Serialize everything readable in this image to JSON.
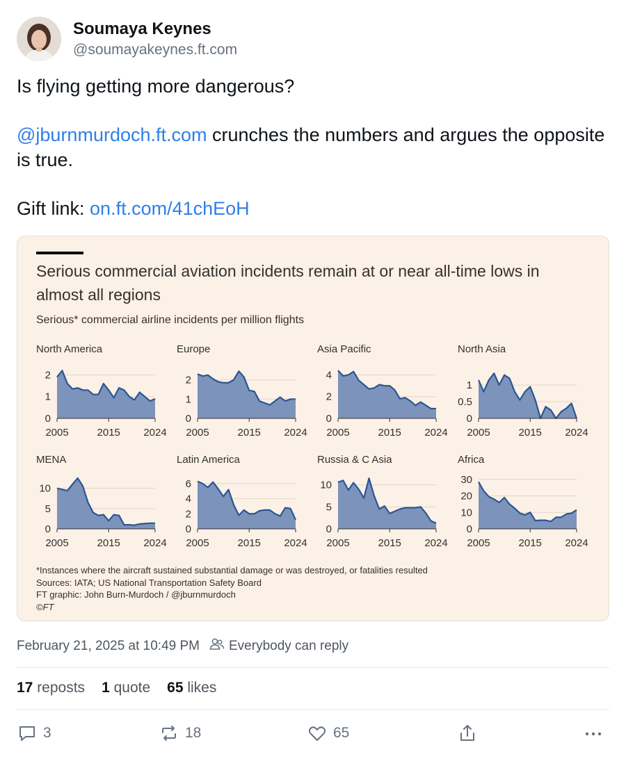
{
  "post": {
    "author_name": "Soumaya Keynes",
    "author_handle": "@soumayakeynes.ft.com",
    "text_line1": "Is flying getting more dangerous?",
    "mention": "@jburnmurdoch.ft.com",
    "text_line2_rest": " crunches the numbers and argues the opposite is true.",
    "gift_label": "Gift link: ",
    "gift_link": "on.ft.com/41chEoH",
    "timestamp": "February 21, 2025 at 10:49 PM",
    "reply_setting": "Everybody can reply",
    "reposts_count": "17",
    "reposts_label": " reposts",
    "quotes_count": "1",
    "quotes_label": " quote",
    "likes_count": "65",
    "likes_label": " likes",
    "reply_count": "3",
    "repost_count_action": "18",
    "like_count_action": "65"
  },
  "card": {
    "title": "Serious commercial aviation incidents remain at or near all-time lows in almost all regions",
    "subtitle": "Serious* commercial airline incidents per million flights",
    "footnote": "*Instances where the aircraft sustained substantial damage or was destroyed, or fatalities resulted",
    "sources": "Sources: IATA; US National Transportation Safety Board",
    "graphic_credit": "FT graphic: John Burn-Murdoch / @jburnmurdoch",
    "copyright": "©FT"
  },
  "colors": {
    "area_fill": "#7c93bb",
    "area_line": "#2a5594",
    "card_bg": "#fcf1e6",
    "link": "#2f7fe6"
  },
  "icons": [
    "reply-icon",
    "repost-icon",
    "like-icon",
    "share-icon",
    "more-icon",
    "people-icon"
  ],
  "chart_data": [
    {
      "type": "area",
      "title": "North America",
      "x_ticks": [
        "2005",
        "2015",
        "2024"
      ],
      "xlim": [
        2005,
        2024
      ],
      "ylim": [
        0,
        2.3
      ],
      "y_ticks": [
        0,
        1,
        2
      ],
      "x": [
        2005,
        2006,
        2007,
        2008,
        2009,
        2010,
        2011,
        2012,
        2013,
        2014,
        2015,
        2016,
        2017,
        2018,
        2019,
        2020,
        2021,
        2022,
        2023,
        2024
      ],
      "values": [
        1.9,
        2.2,
        1.6,
        1.35,
        1.4,
        1.3,
        1.3,
        1.1,
        1.1,
        1.6,
        1.3,
        0.95,
        1.4,
        1.3,
        1.0,
        0.85,
        1.2,
        1.0,
        0.8,
        0.9
      ]
    },
    {
      "type": "area",
      "title": "Europe",
      "x_ticks": [
        "2005",
        "2015",
        "2024"
      ],
      "xlim": [
        2005,
        2024
      ],
      "ylim": [
        0,
        2.6
      ],
      "y_ticks": [
        0,
        1,
        2
      ],
      "x": [
        2005,
        2006,
        2007,
        2008,
        2009,
        2010,
        2011,
        2012,
        2013,
        2014,
        2015,
        2016,
        2017,
        2018,
        2019,
        2020,
        2021,
        2022,
        2023,
        2024
      ],
      "values": [
        2.3,
        2.2,
        2.25,
        2.05,
        1.9,
        1.85,
        1.85,
        2.0,
        2.45,
        2.15,
        1.45,
        1.4,
        0.9,
        0.8,
        0.7,
        0.9,
        1.1,
        0.9,
        1.0,
        1.0
      ]
    },
    {
      "type": "area",
      "title": "Asia Pacific",
      "x_ticks": [
        "2005",
        "2015",
        "2024"
      ],
      "xlim": [
        2005,
        2024
      ],
      "ylim": [
        0,
        4.6
      ],
      "y_ticks": [
        0,
        2,
        4
      ],
      "x": [
        2005,
        2006,
        2007,
        2008,
        2009,
        2010,
        2011,
        2012,
        2013,
        2014,
        2015,
        2016,
        2017,
        2018,
        2019,
        2020,
        2021,
        2022,
        2023,
        2024
      ],
      "values": [
        4.4,
        3.9,
        4.0,
        4.3,
        3.5,
        3.1,
        2.7,
        2.8,
        3.1,
        3.0,
        3.0,
        2.6,
        1.8,
        1.9,
        1.6,
        1.2,
        1.5,
        1.2,
        0.9,
        0.9
      ]
    },
    {
      "type": "area",
      "title": "North Asia",
      "x_ticks": [
        "2005",
        "2015",
        "2024"
      ],
      "xlim": [
        2005,
        2024
      ],
      "ylim": [
        0,
        1.5
      ],
      "y_ticks": [
        0,
        0.5,
        1
      ],
      "x": [
        2005,
        2006,
        2007,
        2008,
        2009,
        2010,
        2011,
        2012,
        2013,
        2014,
        2015,
        2016,
        2017,
        2018,
        2019,
        2020,
        2021,
        2022,
        2023,
        2024
      ],
      "values": [
        1.15,
        0.8,
        1.15,
        1.35,
        1.0,
        1.3,
        1.2,
        0.8,
        0.55,
        0.8,
        0.95,
        0.55,
        0.0,
        0.35,
        0.25,
        0.0,
        0.2,
        0.3,
        0.45,
        0.0
      ]
    },
    {
      "type": "area",
      "title": "MENA",
      "x_ticks": [
        "2005",
        "2015",
        "2024"
      ],
      "xlim": [
        2005,
        2024
      ],
      "ylim": [
        0,
        13
      ],
      "y_ticks": [
        0,
        5,
        10
      ],
      "x": [
        2005,
        2006,
        2007,
        2008,
        2009,
        2010,
        2011,
        2012,
        2013,
        2014,
        2015,
        2016,
        2017,
        2018,
        2019,
        2020,
        2021,
        2022,
        2023,
        2024
      ],
      "values": [
        10.0,
        9.7,
        9.4,
        11.0,
        12.5,
        10.5,
        6.5,
        4.0,
        3.3,
        3.5,
        2.0,
        3.5,
        3.3,
        1.0,
        1.0,
        0.9,
        1.2,
        1.3,
        1.4,
        1.4
      ]
    },
    {
      "type": "area",
      "title": "Latin America",
      "x_ticks": [
        "2005",
        "2015",
        "2024"
      ],
      "xlim": [
        2005,
        2024
      ],
      "ylim": [
        0,
        7
      ],
      "y_ticks": [
        0,
        2,
        4,
        6
      ],
      "x": [
        2005,
        2006,
        2007,
        2008,
        2009,
        2010,
        2011,
        2012,
        2013,
        2014,
        2015,
        2016,
        2017,
        2018,
        2019,
        2020,
        2021,
        2022,
        2023,
        2024
      ],
      "values": [
        6.3,
        6.0,
        5.5,
        6.2,
        5.3,
        4.3,
        5.2,
        3.2,
        1.8,
        2.5,
        2.0,
        2.0,
        2.4,
        2.5,
        2.5,
        2.0,
        1.7,
        2.8,
        2.7,
        1.2
      ]
    },
    {
      "type": "area",
      "title": "Russia & C Asia",
      "x_ticks": [
        "2005",
        "2015",
        "2024"
      ],
      "xlim": [
        2005,
        2024
      ],
      "ylim": [
        0,
        12
      ],
      "y_ticks": [
        0,
        5,
        10
      ],
      "x": [
        2005,
        2006,
        2007,
        2008,
        2009,
        2010,
        2011,
        2012,
        2013,
        2014,
        2015,
        2016,
        2017,
        2018,
        2019,
        2020,
        2021,
        2022,
        2023,
        2024
      ],
      "values": [
        10.6,
        11.0,
        8.8,
        10.5,
        9.0,
        7.0,
        11.5,
        7.5,
        4.5,
        5.2,
        3.5,
        4.0,
        4.5,
        4.8,
        4.8,
        4.8,
        5.0,
        3.6,
        1.8,
        1.3
      ]
    },
    {
      "type": "area",
      "title": "Africa",
      "x_ticks": [
        "2005",
        "2015",
        "2024"
      ],
      "xlim": [
        2005,
        2024
      ],
      "ylim": [
        0,
        32
      ],
      "y_ticks": [
        0,
        10,
        20,
        30
      ],
      "x": [
        2005,
        2006,
        2007,
        2008,
        2009,
        2010,
        2011,
        2012,
        2013,
        2014,
        2015,
        2016,
        2017,
        2018,
        2019,
        2020,
        2021,
        2022,
        2023,
        2024
      ],
      "values": [
        28.5,
        23.0,
        19.5,
        18.0,
        16.0,
        19.0,
        15.0,
        12.5,
        9.5,
        8.5,
        10.0,
        5.0,
        5.2,
        5.2,
        4.5,
        7.0,
        7.0,
        9.0,
        9.5,
        11.5
      ]
    }
  ]
}
